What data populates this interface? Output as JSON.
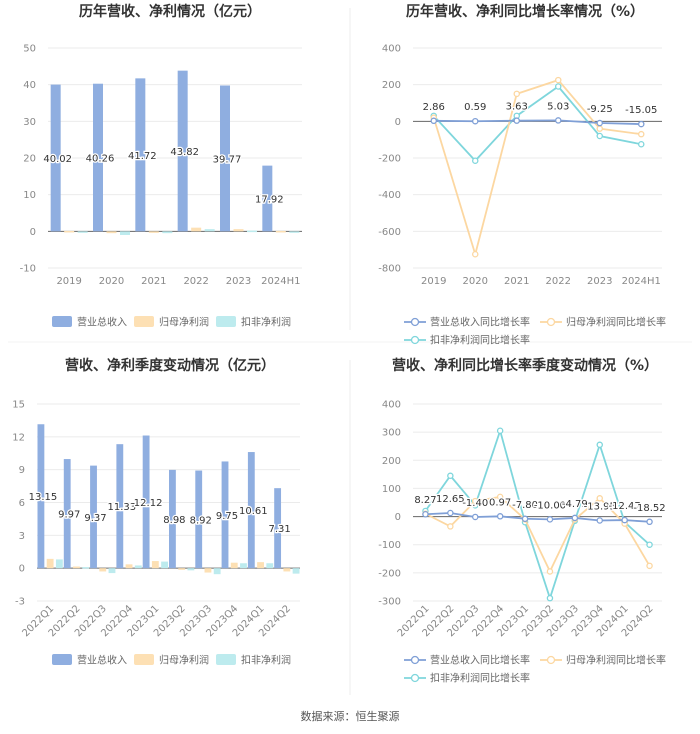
{
  "source": "数据来源：恒生聚源",
  "colors": {
    "revenue": "#8faee0",
    "netprofit": "#fde0b4",
    "deducted": "#bdebee",
    "grid": "#ebebeb",
    "axis": "#666666"
  },
  "legends": {
    "revenue": "营业总收入",
    "netprofit": "归母净利润",
    "deducted": "扣非净利润",
    "revenue_yoy": "营业总收入同比增长率",
    "netprofit_yoy": "归母净利润同比增长率",
    "deducted_yoy": "扣非净利润同比增长率"
  },
  "chart_data": [
    {
      "id": "annual-bar",
      "type": "bar",
      "title": "历年营收、净利情况（亿元）",
      "categories": [
        "2019",
        "2020",
        "2021",
        "2022",
        "2023",
        "2024H1"
      ],
      "ylim": [
        -10,
        50
      ],
      "yticks": [
        -10,
        0,
        10,
        20,
        30,
        40,
        50
      ],
      "series": [
        {
          "name": "营业总收入",
          "values": [
            40.02,
            40.26,
            41.72,
            43.82,
            39.77,
            17.92
          ],
          "labels": [
            "40.02",
            "40.26",
            "41.72",
            "43.82",
            "39.77",
            "17.92"
          ]
        },
        {
          "name": "归母净利润",
          "values": [
            0.1,
            -0.5,
            -0.3,
            1.0,
            0.6,
            0.1
          ]
        },
        {
          "name": "扣非净利润",
          "values": [
            -0.2,
            -1.0,
            -0.5,
            0.6,
            0.2,
            -0.1
          ]
        }
      ],
      "legend": "bottom",
      "grid": true
    },
    {
      "id": "annual-line",
      "type": "line",
      "title": "历年营收、净利同比增长率情况（%）",
      "categories": [
        "2019",
        "2020",
        "2021",
        "2022",
        "2023",
        "2024H1"
      ],
      "ylim": [
        -800,
        400
      ],
      "yticks": [
        -800,
        -600,
        -400,
        -200,
        0,
        200,
        400
      ],
      "series": [
        {
          "name": "营业总收入同比增长率",
          "values": [
            2.86,
            0.59,
            3.63,
            5.03,
            -9.25,
            -15.05
          ],
          "labels": [
            "2.86",
            "0.59",
            "3.63",
            "5.03",
            "-9.25",
            "-15.05"
          ]
        },
        {
          "name": "归母净利润同比增长率",
          "values": [
            20,
            -725,
            150,
            225,
            -40,
            -70
          ]
        },
        {
          "name": "扣非净利润同比增长率",
          "values": [
            30,
            -215,
            30,
            190,
            -80,
            -125
          ]
        }
      ],
      "legend": "bottom",
      "grid": true
    },
    {
      "id": "quarter-bar",
      "type": "bar",
      "title": "营收、净利季度变动情况（亿元）",
      "categories": [
        "2022Q1",
        "2022Q2",
        "2022Q3",
        "2022Q4",
        "2023Q1",
        "2023Q2",
        "2023Q3",
        "2023Q4",
        "2024Q1",
        "2024Q2"
      ],
      "ylim": [
        -3,
        15
      ],
      "yticks": [
        -3,
        0,
        3,
        6,
        9,
        12,
        15
      ],
      "series": [
        {
          "name": "营业总收入",
          "values": [
            13.15,
            9.97,
            9.37,
            11.33,
            12.12,
            8.98,
            8.92,
            9.75,
            10.61,
            7.31
          ],
          "labels": [
            "13.15",
            "9.97",
            "9.37",
            "11.33",
            "12.12",
            "8.98",
            "8.92",
            "9.75",
            "10.61",
            "7.31"
          ]
        },
        {
          "name": "归母净利润",
          "values": [
            0.85,
            0.15,
            -0.3,
            0.35,
            0.65,
            -0.15,
            -0.4,
            0.5,
            0.55,
            -0.3
          ]
        },
        {
          "name": "扣非净利润",
          "values": [
            0.8,
            0.1,
            -0.45,
            0.25,
            0.6,
            -0.2,
            -0.55,
            0.45,
            0.45,
            -0.5
          ]
        }
      ],
      "legend": "bottom",
      "grid": true
    },
    {
      "id": "quarter-line",
      "type": "line",
      "title": "营收、净利同比增长率季度变动情况（%）",
      "categories": [
        "2022Q1",
        "2022Q2",
        "2022Q3",
        "2022Q4",
        "2023Q1",
        "2023Q2",
        "2023Q3",
        "2023Q4",
        "2024Q1",
        "2024Q2"
      ],
      "ylim": [
        -300,
        400
      ],
      "yticks": [
        -300,
        -200,
        -100,
        0,
        100,
        200,
        300,
        400
      ],
      "series": [
        {
          "name": "营业总收入同比增长率",
          "values": [
            8.27,
            12.65,
            -1.4,
            0.97,
            -7.8,
            -10.0,
            -4.79,
            -13.95,
            -12.47,
            -18.52
          ],
          "labels": [
            "8.27",
            "12.65",
            "-1.40",
            "0.97",
            "-7.80",
            "-10.00",
            "-4.79",
            "-13.95",
            "-12.47",
            "-18.52"
          ]
        },
        {
          "name": "归母净利润同比增长率",
          "values": [
            10,
            -35,
            55,
            70,
            -10,
            -195,
            -10,
            65,
            -25,
            -175
          ]
        },
        {
          "name": "扣非净利润同比增长率",
          "values": [
            20,
            145,
            40,
            305,
            -20,
            -290,
            -15,
            255,
            -20,
            -100
          ]
        }
      ],
      "legend": "bottom",
      "grid": true
    }
  ]
}
